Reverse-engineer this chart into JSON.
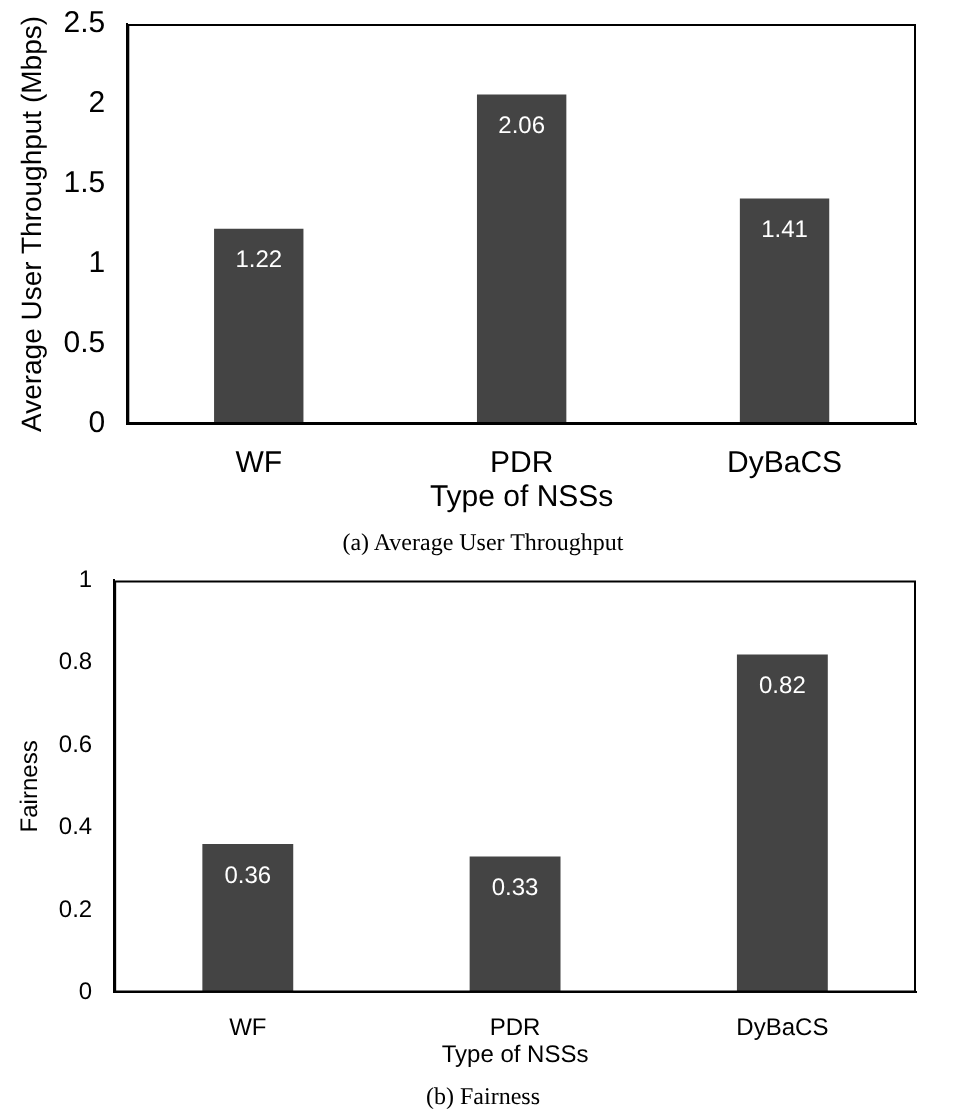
{
  "chart_data": [
    {
      "type": "bar",
      "categories": [
        "WF",
        "PDR",
        "DyBaCS"
      ],
      "values": [
        1.22,
        2.06,
        1.41
      ],
      "color": "#444444",
      "ylim": [
        0,
        2.5
      ],
      "yticks": [
        0,
        0.5,
        1,
        1.5,
        2,
        2.5
      ],
      "xlabel": "Type of NSSs",
      "ylabel": "Average User Throughput (Mbps)",
      "data_labels": true,
      "grid": false,
      "legend": false,
      "annotations": [
        "(a) Average User Throughput"
      ]
    },
    {
      "type": "bar",
      "categories": [
        "WF",
        "PDR",
        "DyBaCS"
      ],
      "values": [
        0.36,
        0.33,
        0.82
      ],
      "color": "#444444",
      "ylim": [
        0,
        1
      ],
      "yticks": [
        0,
        0.2,
        0.4,
        0.6,
        0.8,
        1
      ],
      "xlabel": "Type of NSSs",
      "ylabel": "Fairness",
      "data_labels": true,
      "grid": false,
      "legend": false,
      "annotations": [
        "(b) Fairness"
      ]
    }
  ]
}
